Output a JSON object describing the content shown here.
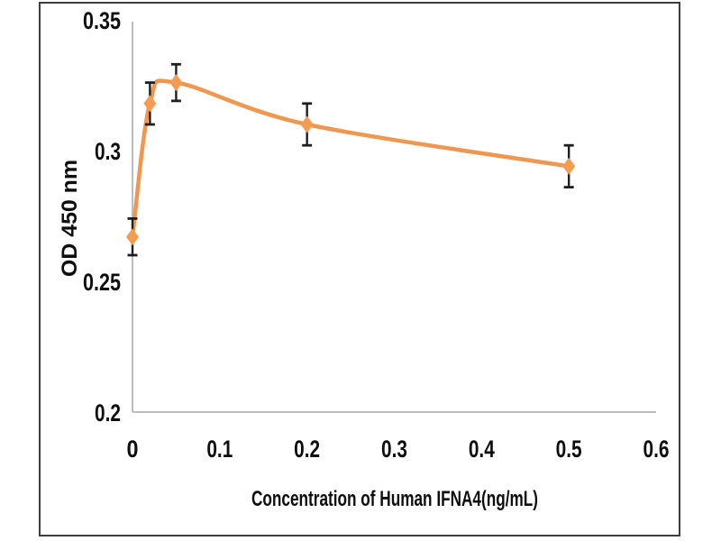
{
  "figure": {
    "background_color": "#ffffff",
    "frame_color": "#3d3d3d",
    "axis_line_color": "#bdbdbd",
    "text_color": "#0e0e0e"
  },
  "chart_data": {
    "type": "line",
    "xlabel": "Concentration of Human IFNA4(ng/mL)",
    "ylabel": "OD 450 nm",
    "xlim": [
      0,
      0.6
    ],
    "ylim": [
      0.2,
      0.35
    ],
    "x_tick_labels": [
      "0",
      "0.1",
      "0.2",
      "0.3",
      "0.4",
      "0.5",
      "0.6"
    ],
    "x_tick_values": [
      0,
      0.1,
      0.2,
      0.3,
      0.4,
      0.5,
      0.6
    ],
    "y_tick_labels": [
      "0.35",
      "0.3",
      "0.25",
      "0.2"
    ],
    "y_tick_values": [
      0.35,
      0.3,
      0.25,
      0.2
    ],
    "grid": false,
    "legend": null,
    "series": [
      {
        "x": [
          0,
          0.02,
          0.05,
          0.2,
          0.5
        ],
        "y": [
          0.267,
          0.318,
          0.326,
          0.31,
          0.294
        ],
        "y_err": [
          0.007,
          0.008,
          0.007,
          0.008,
          0.008
        ],
        "smooth": true,
        "marker": "diamond",
        "line_color": "#F0964E",
        "marker_color": "#F49C50",
        "error_bar_color": "#1f1f1f"
      }
    ]
  }
}
